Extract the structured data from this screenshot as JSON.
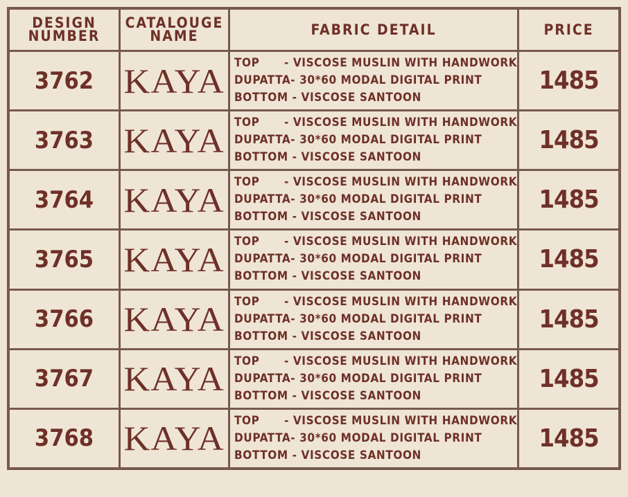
{
  "header": {
    "design_number": "DESIGN NUMBER",
    "design_number_l1": "DESIGN",
    "design_number_l2": "NUMBER",
    "catalogue_l1": "CATALOUGE",
    "catalogue_l2": "NAME",
    "fabric_detail": "FABRIC DETAIL",
    "price": "PRICE"
  },
  "colors": {
    "background": "#efe5d5",
    "border": "#76594e",
    "text": "#6e3028"
  },
  "rows": [
    {
      "design": "3762",
      "catalogue": "KAYA",
      "fabric": [
        {
          "label": "TOP      ",
          "value": "- VISCOSE MUSLIN WITH HANDWORK"
        },
        {
          "label": "DUPATTA",
          "value": "- 30*60 MODAL DIGITAL PRINT"
        },
        {
          "label": "BOTTOM ",
          "value": "- VISCOSE SANTOON"
        }
      ],
      "price": "1485"
    },
    {
      "design": "3763",
      "catalogue": "KAYA",
      "fabric": [
        {
          "label": "TOP      ",
          "value": "- VISCOSE MUSLIN WITH HANDWORK"
        },
        {
          "label": "DUPATTA",
          "value": "- 30*60 MODAL DIGITAL PRINT"
        },
        {
          "label": "BOTTOM ",
          "value": "- VISCOSE SANTOON"
        }
      ],
      "price": "1485"
    },
    {
      "design": "3764",
      "catalogue": "KAYA",
      "fabric": [
        {
          "label": "TOP      ",
          "value": "- VISCOSE MUSLIN WITH HANDWORK"
        },
        {
          "label": "DUPATTA",
          "value": "- 30*60 MODAL DIGITAL PRINT"
        },
        {
          "label": "BOTTOM ",
          "value": "- VISCOSE SANTOON"
        }
      ],
      "price": "1485"
    },
    {
      "design": "3765",
      "catalogue": "KAYA",
      "fabric": [
        {
          "label": "TOP      ",
          "value": "- VISCOSE MUSLIN WITH HANDWORK"
        },
        {
          "label": "DUPATTA",
          "value": "- 30*60 MODAL DIGITAL PRINT"
        },
        {
          "label": "BOTTOM ",
          "value": "- VISCOSE SANTOON"
        }
      ],
      "price": "1485"
    },
    {
      "design": "3766",
      "catalogue": "KAYA",
      "fabric": [
        {
          "label": "TOP      ",
          "value": "- VISCOSE MUSLIN WITH HANDWORK"
        },
        {
          "label": "DUPATTA",
          "value": "- 30*60 MODAL DIGITAL PRINT"
        },
        {
          "label": "BOTTOM ",
          "value": "- VISCOSE SANTOON"
        }
      ],
      "price": "1485"
    },
    {
      "design": "3767",
      "catalogue": "KAYA",
      "fabric": [
        {
          "label": "TOP      ",
          "value": "- VISCOSE MUSLIN WITH HANDWORK"
        },
        {
          "label": "DUPATTA",
          "value": "- 30*60 MODAL DIGITAL PRINT"
        },
        {
          "label": "BOTTOM ",
          "value": "- VISCOSE SANTOON"
        }
      ],
      "price": "1485"
    },
    {
      "design": "3768",
      "catalogue": "KAYA",
      "fabric": [
        {
          "label": "TOP      ",
          "value": "- VISCOSE MUSLIN WITH HANDWORK"
        },
        {
          "label": "DUPATTA",
          "value": "- 30*60 MODAL DIGITAL PRINT"
        },
        {
          "label": "BOTTOM ",
          "value": "- VISCOSE SANTOON"
        }
      ],
      "price": "1485"
    }
  ]
}
